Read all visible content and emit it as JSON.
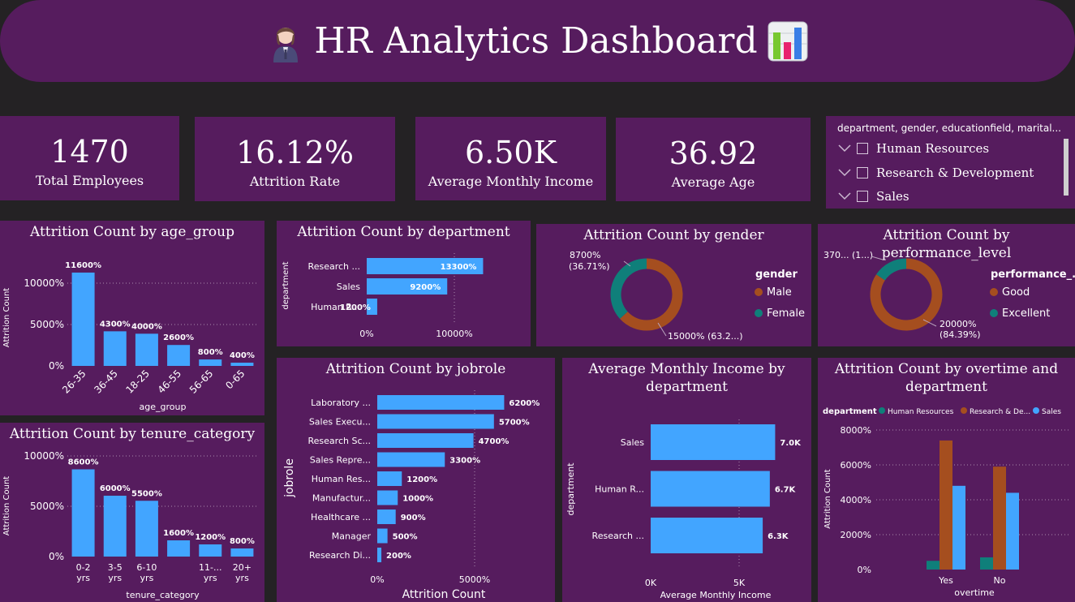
{
  "header": {
    "title": "HR Analytics Dashboard",
    "left_icon": "office-worker-emoji-icon",
    "right_icon": "bar-chart-emoji-icon"
  },
  "kpis": [
    {
      "value": "1470",
      "label": "Total Employees"
    },
    {
      "value": "16.12%",
      "label": "Attrition Rate"
    },
    {
      "value": "6.50K",
      "label": "Average Monthly Income"
    },
    {
      "value": "36.92",
      "label": "Average Age"
    }
  ],
  "slicer": {
    "title": "department, gender, educationfield, marital...",
    "items": [
      "Human Resources",
      "Research & Development",
      "Sales"
    ]
  },
  "colors": {
    "bar": "#42a5ff",
    "panel": "#561c5e",
    "teal": "#0f7f7a",
    "orange": "#a54e1f",
    "background": "#242224"
  },
  "charts": {
    "age": {
      "title": "Attrition Count by age_group",
      "chart_data": {
        "type": "bar",
        "categories": [
          "26-35",
          "36-45",
          "18-25",
          "46-55",
          "56-65",
          "0-65"
        ],
        "values": [
          11600,
          4300,
          4000,
          2600,
          800,
          400
        ],
        "data_labels": [
          "11600%",
          "4300%",
          "4000%",
          "2600%",
          "800%",
          "400%"
        ],
        "xlabel": "age_group",
        "ylabel": "Attrition Count",
        "yticks": [
          "0%",
          "5000%",
          "10000%"
        ],
        "ylim": [
          0,
          12000
        ]
      }
    },
    "tenure": {
      "title": "Attrition Count by tenure_category",
      "chart_data": {
        "type": "bar",
        "categories": [
          "0-2 yrs",
          "3-5 yrs",
          "6-10 yrs",
          "",
          "11-... yrs",
          "20+ yrs"
        ],
        "values": [
          8600,
          6000,
          5500,
          1600,
          1200,
          800
        ],
        "data_labels": [
          "8600%",
          "6000%",
          "5500%",
          "1600%",
          "1200%",
          "800%"
        ],
        "xlabel": "tenure_category",
        "ylabel": "Attrition Count",
        "yticks": [
          "0%",
          "5000%",
          "10000%"
        ],
        "ylim": [
          0,
          10000
        ]
      }
    },
    "department": {
      "title": "Attrition Count by department",
      "chart_data": {
        "type": "bar",
        "orientation": "horizontal",
        "categories": [
          "Research ...",
          "Sales",
          "Human R..."
        ],
        "values": [
          13300,
          9200,
          1200
        ],
        "data_labels": [
          "13300%",
          "9200%",
          "1200%"
        ],
        "ylabel": "department",
        "xticks": [
          "0%",
          "10000%"
        ],
        "xlim": [
          0,
          14000
        ]
      }
    },
    "jobrole": {
      "title": "Attrition Count by jobrole",
      "chart_data": {
        "type": "bar",
        "orientation": "horizontal",
        "categories": [
          "Laboratory ...",
          "Sales Execu...",
          "Research Sc...",
          "Sales Repre...",
          "Human Res...",
          "Manufactur...",
          "Healthcare ...",
          "Manager",
          "Research Di..."
        ],
        "values": [
          6200,
          5700,
          4700,
          3300,
          1200,
          1000,
          900,
          500,
          200
        ],
        "data_labels": [
          "6200%",
          "5700%",
          "4700%",
          "3300%",
          "1200%",
          "1000%",
          "900%",
          "500%",
          "200%"
        ],
        "xlabel": "Attrition Count",
        "ylabel": "jobrole",
        "xticks": [
          "0%",
          "5000%"
        ],
        "xlim": [
          0,
          6500
        ]
      }
    },
    "income": {
      "title": "Average Monthly Income by department",
      "chart_data": {
        "type": "bar",
        "orientation": "horizontal",
        "categories": [
          "Sales",
          "Human R...",
          "Research ..."
        ],
        "values": [
          7000,
          6700,
          6300
        ],
        "data_labels": [
          "7.0K",
          "6.7K",
          "6.3K"
        ],
        "xlabel": "Average Monthly Income",
        "ylabel": "department",
        "xticks": [
          "0K",
          "5K"
        ],
        "xlim": [
          0,
          7300
        ]
      }
    },
    "gender": {
      "title": "Attrition Count by gender",
      "chart_data": {
        "type": "pie",
        "donut": true,
        "legend_title": "gender",
        "categories": [
          "Male",
          "Female"
        ],
        "values": [
          15000,
          8700
        ],
        "labels": [
          "15000% (63.2...)",
          "8700%",
          "(36.71%)"
        ]
      }
    },
    "performance": {
      "title": "Attrition Count by performance_level",
      "chart_data": {
        "type": "pie",
        "donut": true,
        "legend_title": "performance_...",
        "categories": [
          "Good",
          "Excellent"
        ],
        "values": [
          20000,
          3700
        ],
        "labels": [
          "20000%",
          "(84.39%)",
          "370... (1...)"
        ]
      }
    },
    "overtime": {
      "title": "Attrition Count by overtime and department",
      "chart_data": {
        "type": "bar",
        "legend_title": "department",
        "categories": [
          "Yes",
          "No"
        ],
        "series": [
          {
            "name": "Human Resources",
            "values": [
              500,
              700
            ]
          },
          {
            "name": "Research & De...",
            "values": [
              7400,
              5900
            ]
          },
          {
            "name": "Sales",
            "values": [
              4800,
              4400
            ]
          }
        ],
        "xlabel": "overtime",
        "ylabel": "Attrition Count",
        "yticks": [
          "0%",
          "2000%",
          "4000%",
          "6000%",
          "8000%"
        ],
        "ylim": [
          0,
          8000
        ]
      }
    }
  }
}
